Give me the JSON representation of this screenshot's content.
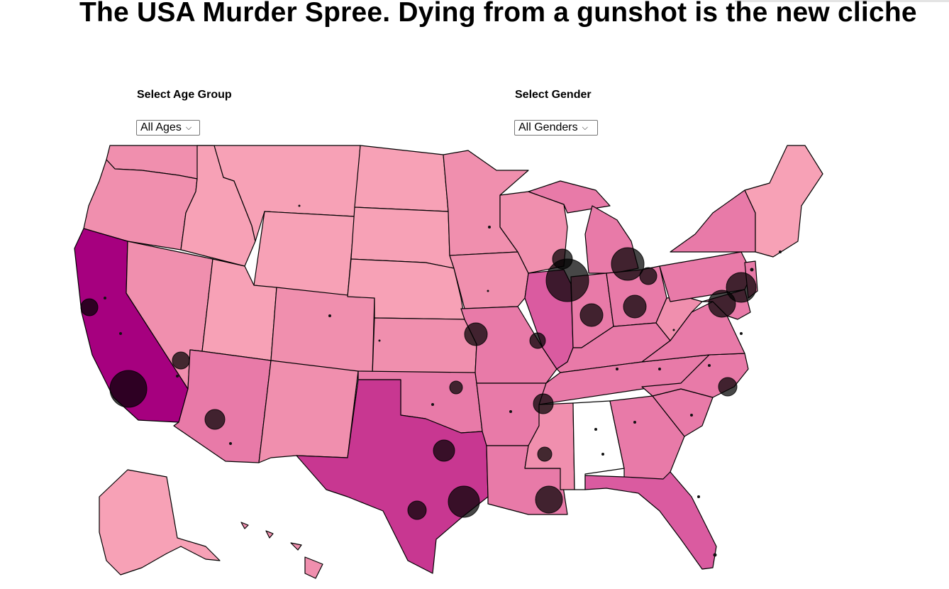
{
  "title": "The USA Murder Spree. Dying from a gunshot is the new cliche",
  "controls": {
    "age": {
      "label": "Select Age Group",
      "selected": "All Ages"
    },
    "gender": {
      "label": "Select Gender",
      "selected": "All Genders"
    }
  },
  "colors": {
    "level1": "#f7a1b6",
    "level2": "#f08fae",
    "level3": "#e87aa8",
    "level4": "#da5ba0",
    "level5": "#c83791",
    "level6": "#a6007f",
    "nodata": "#ffffff",
    "bubble": "#000000"
  },
  "map_data": {
    "type": "choropleth-with-bubbles",
    "states": [
      {
        "name": "Washington",
        "level": 2
      },
      {
        "name": "Oregon",
        "level": 2
      },
      {
        "name": "California",
        "level": 6
      },
      {
        "name": "Nevada",
        "level": 2
      },
      {
        "name": "Idaho",
        "level": 1
      },
      {
        "name": "Montana",
        "level": 1
      },
      {
        "name": "Wyoming",
        "level": 1
      },
      {
        "name": "Utah",
        "level": 1
      },
      {
        "name": "Arizona",
        "level": 3
      },
      {
        "name": "Colorado",
        "level": 2
      },
      {
        "name": "New Mexico",
        "level": 2
      },
      {
        "name": "North Dakota",
        "level": 1
      },
      {
        "name": "South Dakota",
        "level": 1
      },
      {
        "name": "Nebraska",
        "level": 1
      },
      {
        "name": "Kansas",
        "level": 2
      },
      {
        "name": "Oklahoma",
        "level": 3
      },
      {
        "name": "Texas",
        "level": 5
      },
      {
        "name": "Minnesota",
        "level": 2
      },
      {
        "name": "Iowa",
        "level": 2
      },
      {
        "name": "Missouri",
        "level": 3
      },
      {
        "name": "Arkansas",
        "level": 3
      },
      {
        "name": "Louisiana",
        "level": 3
      },
      {
        "name": "Wisconsin",
        "level": 2
      },
      {
        "name": "Illinois",
        "level": 4
      },
      {
        "name": "Michigan",
        "level": 3
      },
      {
        "name": "Indiana",
        "level": 3
      },
      {
        "name": "Ohio",
        "level": 3
      },
      {
        "name": "Kentucky",
        "level": 3
      },
      {
        "name": "Tennessee",
        "level": 3
      },
      {
        "name": "Mississippi",
        "level": 2
      },
      {
        "name": "Alabama",
        "level": 0
      },
      {
        "name": "Georgia",
        "level": 3
      },
      {
        "name": "Florida",
        "level": 4
      },
      {
        "name": "South Carolina",
        "level": 3
      },
      {
        "name": "North Carolina",
        "level": 3
      },
      {
        "name": "Virginia",
        "level": 3
      },
      {
        "name": "West Virginia",
        "level": 2
      },
      {
        "name": "Pennsylvania",
        "level": 3
      },
      {
        "name": "New York",
        "level": 3
      },
      {
        "name": "Maryland",
        "level": 3
      },
      {
        "name": "New Jersey",
        "level": 3
      },
      {
        "name": "New England",
        "level": 1
      },
      {
        "name": "Alaska",
        "level": 1
      },
      {
        "name": "Hawaii",
        "level": 2
      }
    ],
    "bubble_cities": [
      {
        "city": "Los Angeles",
        "magnitude": 5
      },
      {
        "city": "Chicago",
        "magnitude": 5
      },
      {
        "city": "Houston",
        "magnitude": 4
      },
      {
        "city": "Detroit",
        "magnitude": 4
      },
      {
        "city": "Philadelphia",
        "magnitude": 4
      },
      {
        "city": "Baltimore",
        "magnitude": 3
      },
      {
        "city": "Indianapolis",
        "magnitude": 3
      },
      {
        "city": "Columbus",
        "magnitude": 3
      },
      {
        "city": "Kansas City",
        "magnitude": 3
      },
      {
        "city": "New Orleans",
        "magnitude": 3
      },
      {
        "city": "Dallas",
        "magnitude": 3
      },
      {
        "city": "Phoenix",
        "magnitude": 3
      },
      {
        "city": "Memphis",
        "magnitude": 3
      },
      {
        "city": "Milwaukee",
        "magnitude": 3
      },
      {
        "city": "Oakland",
        "magnitude": 2
      },
      {
        "city": "Las Vegas",
        "magnitude": 2
      },
      {
        "city": "San Antonio",
        "magnitude": 2
      },
      {
        "city": "St. Louis",
        "magnitude": 2
      },
      {
        "city": "Cleveland",
        "magnitude": 2
      },
      {
        "city": "Raleigh",
        "magnitude": 2
      },
      {
        "city": "Jackson",
        "magnitude": 1
      },
      {
        "city": "Oklahoma City",
        "magnitude": 1
      }
    ]
  }
}
